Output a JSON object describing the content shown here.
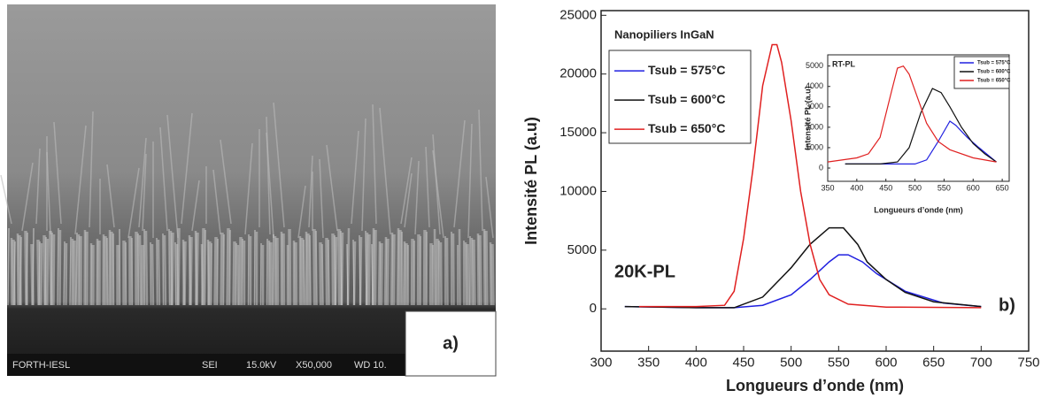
{
  "panel_a": {
    "label": "a)",
    "footer": [
      "FORTH-IESL",
      "SEI",
      "15.0kV",
      "X50,000",
      "WD 10."
    ]
  },
  "chart_data": [
    {
      "type": "line",
      "xlabel": "Longueurs d’onde (nm)",
      "ylabel": "Intensité PL (a.u)",
      "annotations": [
        "Nanopiliers InGaN",
        "20K-PL",
        "b)"
      ],
      "xlim": [
        300,
        750
      ],
      "xticks": [
        300,
        350,
        400,
        450,
        500,
        550,
        600,
        650,
        700,
        750
      ],
      "ylim": [
        -3600,
        25400
      ],
      "yticks": [
        0,
        5000,
        10000,
        15000,
        20000,
        25000
      ],
      "series": [
        {
          "name": "Tsub = 575°C",
          "color": "#2020e0",
          "x": [
            325,
            400,
            440,
            470,
            500,
            520,
            540,
            550,
            560,
            575,
            590,
            620,
            660,
            700
          ],
          "values": [
            200,
            100,
            100,
            300,
            1200,
            2500,
            4000,
            4600,
            4600,
            4000,
            3000,
            1500,
            500,
            200
          ]
        },
        {
          "name": "Tsub = 600°C",
          "color": "#111111",
          "x": [
            325,
            400,
            440,
            470,
            500,
            520,
            540,
            555,
            570,
            580,
            600,
            620,
            650,
            700
          ],
          "values": [
            200,
            100,
            100,
            1000,
            3500,
            5500,
            6900,
            6900,
            5500,
            4000,
            2500,
            1400,
            600,
            200
          ]
        },
        {
          "name": "Tsub = 650°C",
          "color": "#e02020",
          "x": [
            340,
            400,
            430,
            440,
            450,
            460,
            470,
            480,
            485,
            490,
            500,
            510,
            520,
            530,
            540,
            560,
            600,
            700
          ],
          "values": [
            200,
            200,
            300,
            1500,
            6000,
            12000,
            19000,
            22500,
            22500,
            21000,
            16000,
            10000,
            5500,
            2500,
            1200,
            400,
            150,
            100
          ]
        }
      ]
    },
    {
      "type": "line",
      "title": "RT-PL",
      "xlabel": "Longueurs d’onde (nm)",
      "ylabel": "Intensité PL (a.u)",
      "xlim": [
        350,
        662
      ],
      "xticks": [
        350,
        400,
        450,
        500,
        550,
        600,
        650
      ],
      "ylim": [
        -650,
        5550
      ],
      "yticks": [
        0,
        1000,
        2000,
        3000,
        4000,
        5000
      ],
      "series": [
        {
          "name": "Tsub = 575°C",
          "color": "#2020e0",
          "x": [
            380,
            500,
            520,
            540,
            560,
            570,
            590,
            610,
            640
          ],
          "values": [
            200,
            200,
            400,
            1300,
            2300,
            2100,
            1500,
            1000,
            300
          ]
        },
        {
          "name": "Tsub = 600°C",
          "color": "#111111",
          "x": [
            380,
            440,
            470,
            490,
            510,
            530,
            545,
            560,
            580,
            600,
            620,
            640
          ],
          "values": [
            200,
            200,
            300,
            1000,
            2700,
            3900,
            3700,
            3000,
            2000,
            1200,
            700,
            300
          ]
        },
        {
          "name": "Tsub = 650°C",
          "color": "#e02020",
          "x": [
            350,
            400,
            420,
            440,
            460,
            470,
            480,
            490,
            500,
            520,
            540,
            560,
            600,
            640
          ],
          "values": [
            300,
            500,
            700,
            1500,
            3800,
            4900,
            5000,
            4600,
            3800,
            2200,
            1300,
            900,
            500,
            300
          ]
        }
      ]
    }
  ]
}
